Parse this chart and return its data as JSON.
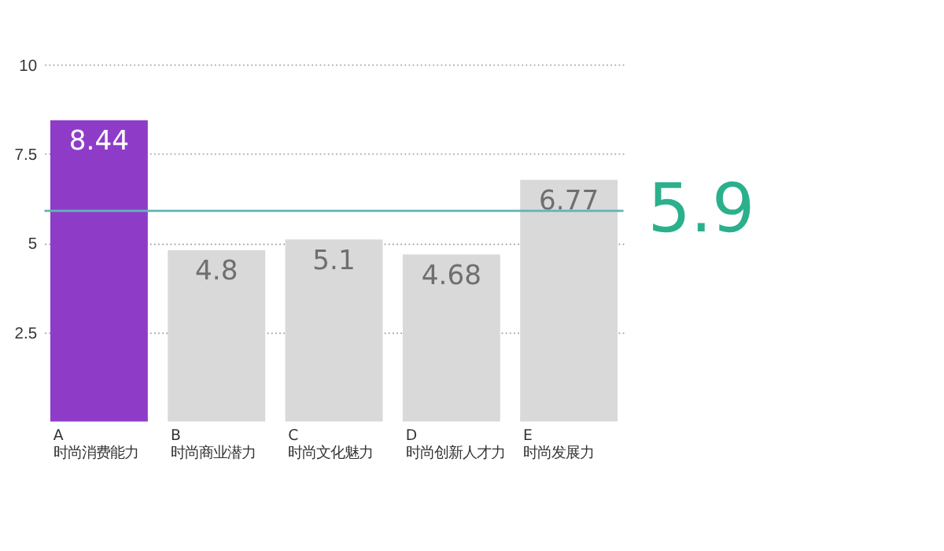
{
  "chart_data": {
    "type": "bar",
    "categories": [
      "A\n时尚消费能力",
      "B\n时尚商业潜力",
      "C\n时尚文化魅力",
      "D\n时尚创新人才力",
      "E\n时尚发展力"
    ],
    "values": [
      8.44,
      4.8,
      5.1,
      4.68,
      6.77
    ],
    "colors": [
      "#8e3cc8",
      "#d9d9d9",
      "#d9d9d9",
      "#d9d9d9",
      "#d9d9d9"
    ],
    "ylim": [
      0,
      10
    ],
    "yticks": [
      2.5,
      5,
      7.5,
      10
    ],
    "grid": "y",
    "data_labels": true,
    "ref_lines": [
      {
        "axis": "y",
        "value": 5.9,
        "label": "5.9",
        "color": "#5fb5b8"
      }
    ]
  }
}
